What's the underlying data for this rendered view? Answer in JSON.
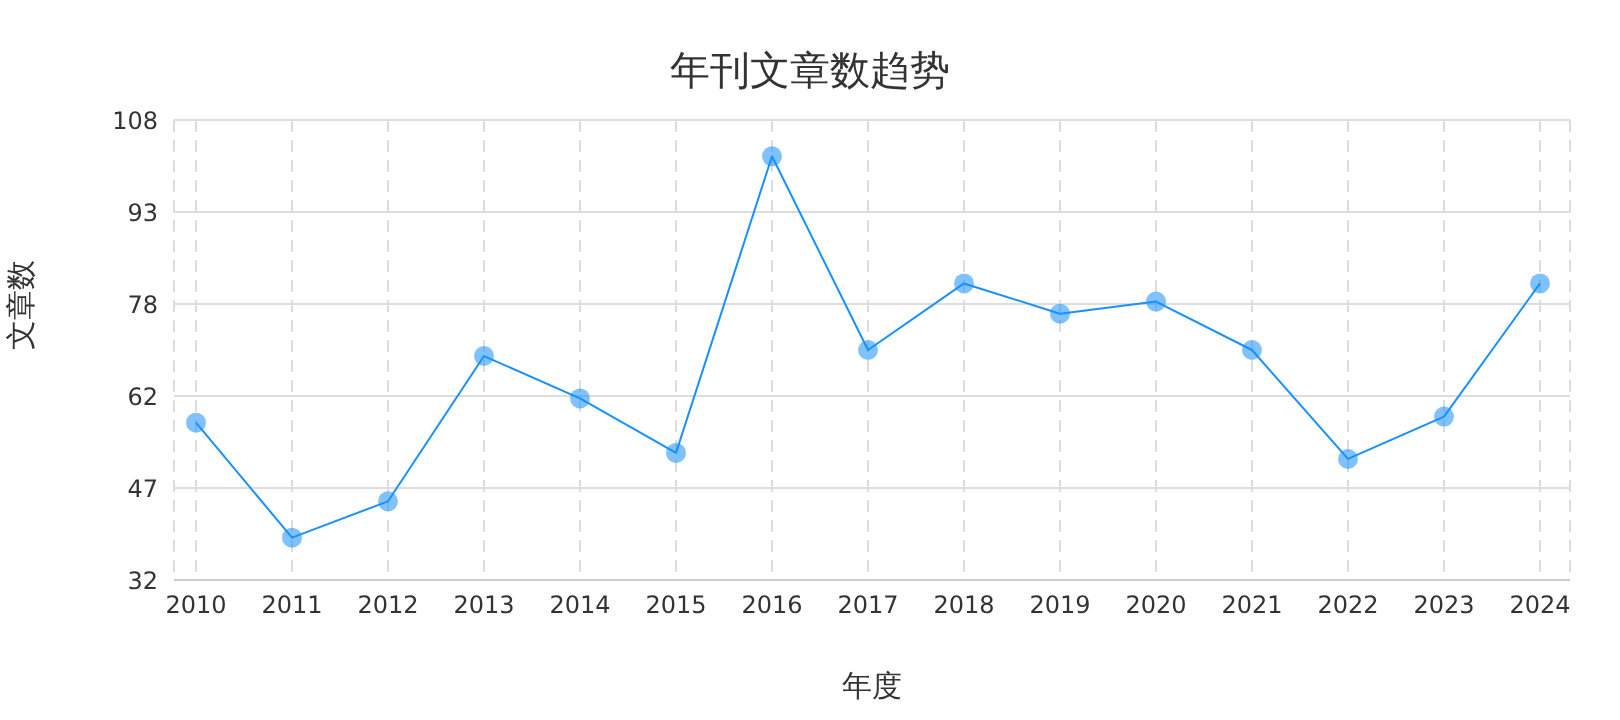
{
  "chart_data": {
    "type": "line",
    "title": "年刊文章数趋势",
    "xlabel": "年度",
    "ylabel": "文章数",
    "categories": [
      "2010",
      "2011",
      "2012",
      "2013",
      "2014",
      "2015",
      "2016",
      "2017",
      "2018",
      "2019",
      "2020",
      "2021",
      "2022",
      "2023",
      "2024"
    ],
    "series": [
      {
        "color": "#1890ff",
        "values": [
          58,
          39,
          45,
          69,
          62,
          53,
          102,
          70,
          81,
          76,
          78,
          70,
          52,
          59,
          81
        ]
      }
    ],
    "ylim": [
      32,
      108
    ],
    "yticks": [
      32,
      {
        "value": 47.2,
        "label": "47"
      },
      {
        "value": 62.4,
        "label": "62"
      },
      {
        "value": 77.6,
        "label": "78"
      },
      {
        "value": 92.8,
        "label": "93"
      },
      108
    ],
    "grid": true,
    "marker": "circle",
    "line_style": "solid",
    "legend": false
  }
}
